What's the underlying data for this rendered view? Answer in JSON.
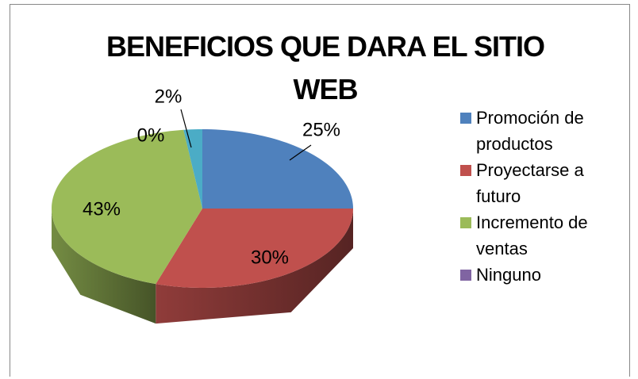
{
  "chart_data": {
    "type": "pie",
    "title": "BENEFICIOS QUE DARA EL SITIO WEB",
    "categories": [
      "Promoción de productos",
      "Proyectarse a futuro",
      "Incremento de ventas",
      "Ninguno",
      null
    ],
    "values": [
      25,
      30,
      43,
      0,
      2
    ],
    "value_labels": [
      "25%",
      "30%",
      "43%",
      "0%",
      "2%"
    ],
    "colors": [
      "#4f81bd",
      "#c0504d",
      "#9bbb59",
      "#8064a2",
      "#4bacc6"
    ]
  }
}
